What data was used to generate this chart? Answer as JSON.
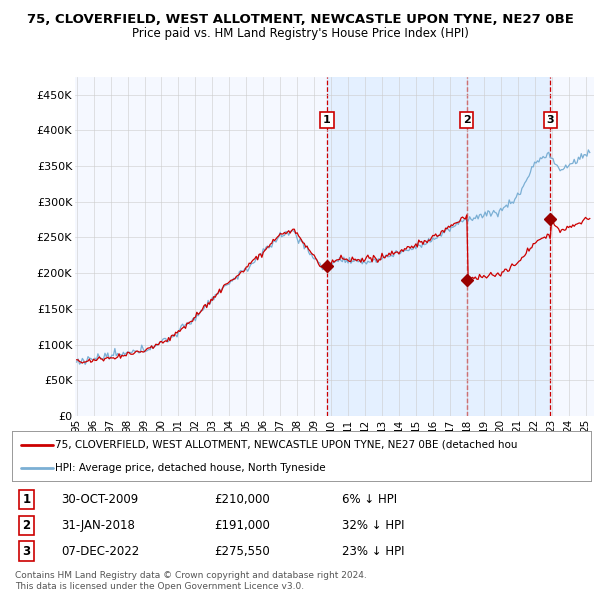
{
  "title": "75, CLOVERFIELD, WEST ALLOTMENT, NEWCASTLE UPON TYNE, NE27 0BE",
  "subtitle": "Price paid vs. HM Land Registry's House Price Index (HPI)",
  "yticks": [
    0,
    50000,
    100000,
    150000,
    200000,
    250000,
    300000,
    350000,
    400000,
    450000
  ],
  "ytick_labels": [
    "£0",
    "£50K",
    "£100K",
    "£150K",
    "£200K",
    "£250K",
    "£300K",
    "£350K",
    "£400K",
    "£450K"
  ],
  "hpi_color": "#7bafd4",
  "price_color": "#cc0000",
  "sale_marker_color": "#990000",
  "vline_color": "#cc0000",
  "shade_color": "#ddeeff",
  "background_color": "#ffffff",
  "plot_bg_color": "#f5f8ff",
  "grid_color": "#cccccc",
  "sale1_date": "30-OCT-2009",
  "sale1_price": 210000,
  "sale1_x": 2009.75,
  "sale1_pct": "6%",
  "sale2_date": "31-JAN-2018",
  "sale2_price": 191000,
  "sale2_x": 2018.0,
  "sale2_pct": "32%",
  "sale3_date": "07-DEC-2022",
  "sale3_price": 275550,
  "sale3_x": 2022.917,
  "sale3_pct": "23%",
  "legend_line1": "75, CLOVERFIELD, WEST ALLOTMENT, NEWCASTLE UPON TYNE, NE27 0BE (detached hou",
  "legend_line2": "HPI: Average price, detached house, North Tyneside",
  "footer1": "Contains HM Land Registry data © Crown copyright and database right 2024.",
  "footer2": "This data is licensed under the Open Government Licence v3.0.",
  "xstart_year": 1995,
  "xend_year": 2025
}
